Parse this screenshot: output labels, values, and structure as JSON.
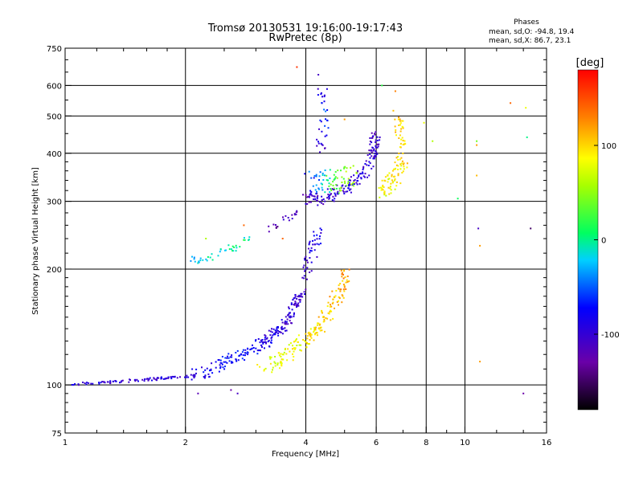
{
  "chart_data": {
    "type": "scatter",
    "title": "Tromsø 20130531 19:16:00-19:17:43",
    "subtitle": "RwPretec (8p)",
    "xlabel": "Frequency [MHz]",
    "ylabel": "Stationary phase Virtual Height [km]",
    "x_scale": "log",
    "y_scale": "log",
    "xlim": [
      1,
      16
    ],
    "ylim": [
      75,
      750
    ],
    "x_ticks": [
      1,
      2,
      4,
      6,
      8,
      10,
      16
    ],
    "x_tick_labels": [
      "1",
      "2",
      "4",
      "6",
      "8",
      "10",
      "16"
    ],
    "y_ticks": [
      75,
      100,
      200,
      300,
      400,
      500,
      600,
      750
    ],
    "y_tick_labels": [
      "75",
      "100",
      "200",
      "300",
      "400",
      "500",
      "600",
      "750"
    ],
    "grid": true,
    "stats": {
      "heading": "Phases",
      "line_o": "mean, sd,O: -94.8, 19.4",
      "line_x": "mean, sd,X: 86.7, 23.1"
    },
    "colorbar": {
      "label": "[deg]",
      "range": [
        -180,
        180
      ],
      "ticks": [
        100,
        0,
        -100
      ],
      "tick_labels": [
        "100",
        "0",
        "-100"
      ]
    },
    "traces": [
      {
        "segments": [
          [
            1.0,
            100,
            -100
          ],
          [
            2.1,
            106,
            -95
          ]
        ],
        "count": 90,
        "jitter": 0.8
      },
      {
        "segments": [
          [
            2.1,
            106,
            -90
          ],
          [
            2.7,
            118,
            -70
          ],
          [
            3.2,
            130,
            -85
          ],
          [
            3.6,
            145,
            -100
          ],
          [
            3.9,
            175,
            -105
          ]
        ],
        "count": 230,
        "jitter": 4
      },
      {
        "segments": [
          [
            3.9,
            190,
            -100
          ],
          [
            4.1,
            210,
            -95
          ],
          [
            4.3,
            250,
            -90
          ]
        ],
        "count": 45,
        "jitter": 8
      },
      {
        "segments": [
          [
            3.1,
            110,
            75
          ],
          [
            3.6,
            120,
            80
          ],
          [
            4.0,
            132,
            90
          ],
          [
            4.4,
            145,
            100
          ],
          [
            4.8,
            170,
            110
          ],
          [
            5.1,
            200,
            120
          ]
        ],
        "count": 190,
        "jitter": 6
      },
      {
        "segments": [
          [
            4.0,
            300,
            -110
          ],
          [
            4.6,
            310,
            -100
          ],
          [
            5.2,
            330,
            -95
          ],
          [
            5.8,
            370,
            -100
          ],
          [
            6.0,
            450,
            -105
          ]
        ],
        "count": 170,
        "jitter": 12
      },
      {
        "segments": [
          [
            4.0,
            340,
            -80
          ],
          [
            4.8,
            340,
            40
          ],
          [
            5.3,
            350,
            60
          ]
        ],
        "count": 80,
        "jitter": 25
      },
      {
        "segments": [
          [
            6.2,
            320,
            80
          ],
          [
            6.6,
            340,
            90
          ],
          [
            7.0,
            380,
            95
          ],
          [
            6.8,
            500,
            105
          ]
        ],
        "count": 110,
        "jitter": 18
      },
      {
        "segments": [
          [
            4.3,
            400,
            -120
          ],
          [
            4.5,
            500,
            -60
          ],
          [
            4.4,
            600,
            -100
          ]
        ],
        "count": 35,
        "jitter": 20
      },
      {
        "segments": [
          [
            2.1,
            210,
            -20
          ],
          [
            2.5,
            222,
            -10
          ],
          [
            2.9,
            240,
            0
          ]
        ],
        "count": 40,
        "jitter": 5
      },
      {
        "segments": [
          [
            3.2,
            255,
            -130
          ],
          [
            3.6,
            270,
            -110
          ],
          [
            3.9,
            285,
            -120
          ]
        ],
        "count": 20,
        "jitter": 6
      }
    ],
    "outliers": [
      [
        2.15,
        95,
        -120
      ],
      [
        2.6,
        97,
        -130
      ],
      [
        2.7,
        95,
        -110
      ],
      [
        3.8,
        670,
        160
      ],
      [
        4.3,
        640,
        -110
      ],
      [
        6.2,
        600,
        20
      ],
      [
        6.7,
        580,
        130
      ],
      [
        7.9,
        480,
        80
      ],
      [
        8.3,
        430,
        60
      ],
      [
        9.6,
        305,
        10
      ],
      [
        10.7,
        430,
        40
      ],
      [
        10.7,
        420,
        120
      ],
      [
        10.7,
        350,
        110
      ],
      [
        10.8,
        255,
        -110
      ],
      [
        10.9,
        230,
        120
      ],
      [
        10.9,
        115,
        120
      ],
      [
        13.0,
        540,
        140
      ],
      [
        14.2,
        525,
        80
      ],
      [
        14.3,
        440,
        0
      ],
      [
        14.6,
        255,
        -150
      ],
      [
        14.0,
        95,
        -130
      ],
      [
        2.25,
        240,
        60
      ],
      [
        2.8,
        260,
        140
      ],
      [
        3.5,
        240,
        140
      ],
      [
        5.0,
        490,
        120
      ]
    ]
  }
}
